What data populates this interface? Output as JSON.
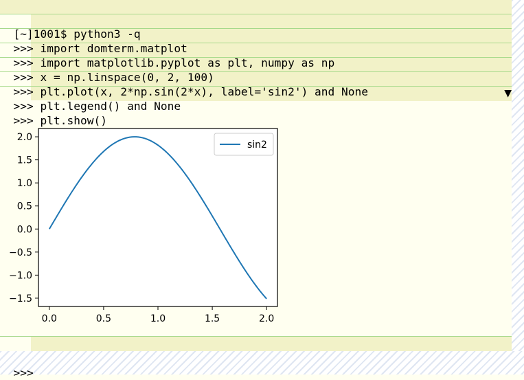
{
  "terminal": {
    "lines": [
      {
        "prompt": "[~]1001$ ",
        "input": "python3 -q"
      },
      {
        "prompt": ">>> ",
        "input": "import domterm.matplot"
      },
      {
        "prompt": ">>> ",
        "input": "import matplotlib.pyplot as plt, numpy as np"
      },
      {
        "prompt": ">>> ",
        "input": "x = np.linspace(0, 2, 100)"
      },
      {
        "prompt": ">>> ",
        "input": "plt.plot(x, 2*np.sin(2*x), label='sin2') and None"
      },
      {
        "prompt": ">>> ",
        "input": "plt.legend() and None"
      },
      {
        "prompt": ">>> ",
        "input": "plt.show()"
      }
    ],
    "fold_icon": "▼",
    "current_prompt": ">>>"
  },
  "colors": {
    "line_color": "#1f77b4",
    "input_bg": "#f2f2c8",
    "prompt_bg": "#e8f8e4",
    "separator": "#a6d98a"
  },
  "chart_data": {
    "type": "line",
    "function": "2*sin(2*x)",
    "xlim": [
      -0.1,
      2.1
    ],
    "ylim": [
      -1.68,
      2.18
    ],
    "xticks": [
      0.0,
      0.5,
      1.0,
      1.5,
      2.0
    ],
    "xtick_labels": [
      "0.0",
      "0.5",
      "1.0",
      "1.5",
      "2.0"
    ],
    "yticks": [
      2.0,
      1.5,
      1.0,
      0.5,
      0.0,
      -0.5,
      -1.0,
      -1.5
    ],
    "ytick_labels": [
      "2.0",
      "1.5",
      "1.0",
      "0.5",
      "0.0",
      "−0.5",
      "−1.0",
      "−1.5"
    ],
    "legend_position": "top-right",
    "series": [
      {
        "name": "sin2",
        "x": [
          0.0,
          0.1,
          0.2,
          0.3,
          0.4,
          0.5,
          0.6,
          0.7,
          0.8,
          0.9,
          1.0,
          1.1,
          1.2,
          1.3,
          1.4,
          1.5,
          1.6,
          1.7,
          1.8,
          1.9,
          2.0
        ],
        "y": [
          0.0,
          0.397,
          0.779,
          1.129,
          1.435,
          1.683,
          1.864,
          1.971,
          1.999,
          1.947,
          1.819,
          1.617,
          1.351,
          1.031,
          0.67,
          0.282,
          -0.117,
          -0.511,
          -0.885,
          -1.224,
          -1.514
        ]
      }
    ],
    "title": "",
    "xlabel": "",
    "ylabel": ""
  }
}
